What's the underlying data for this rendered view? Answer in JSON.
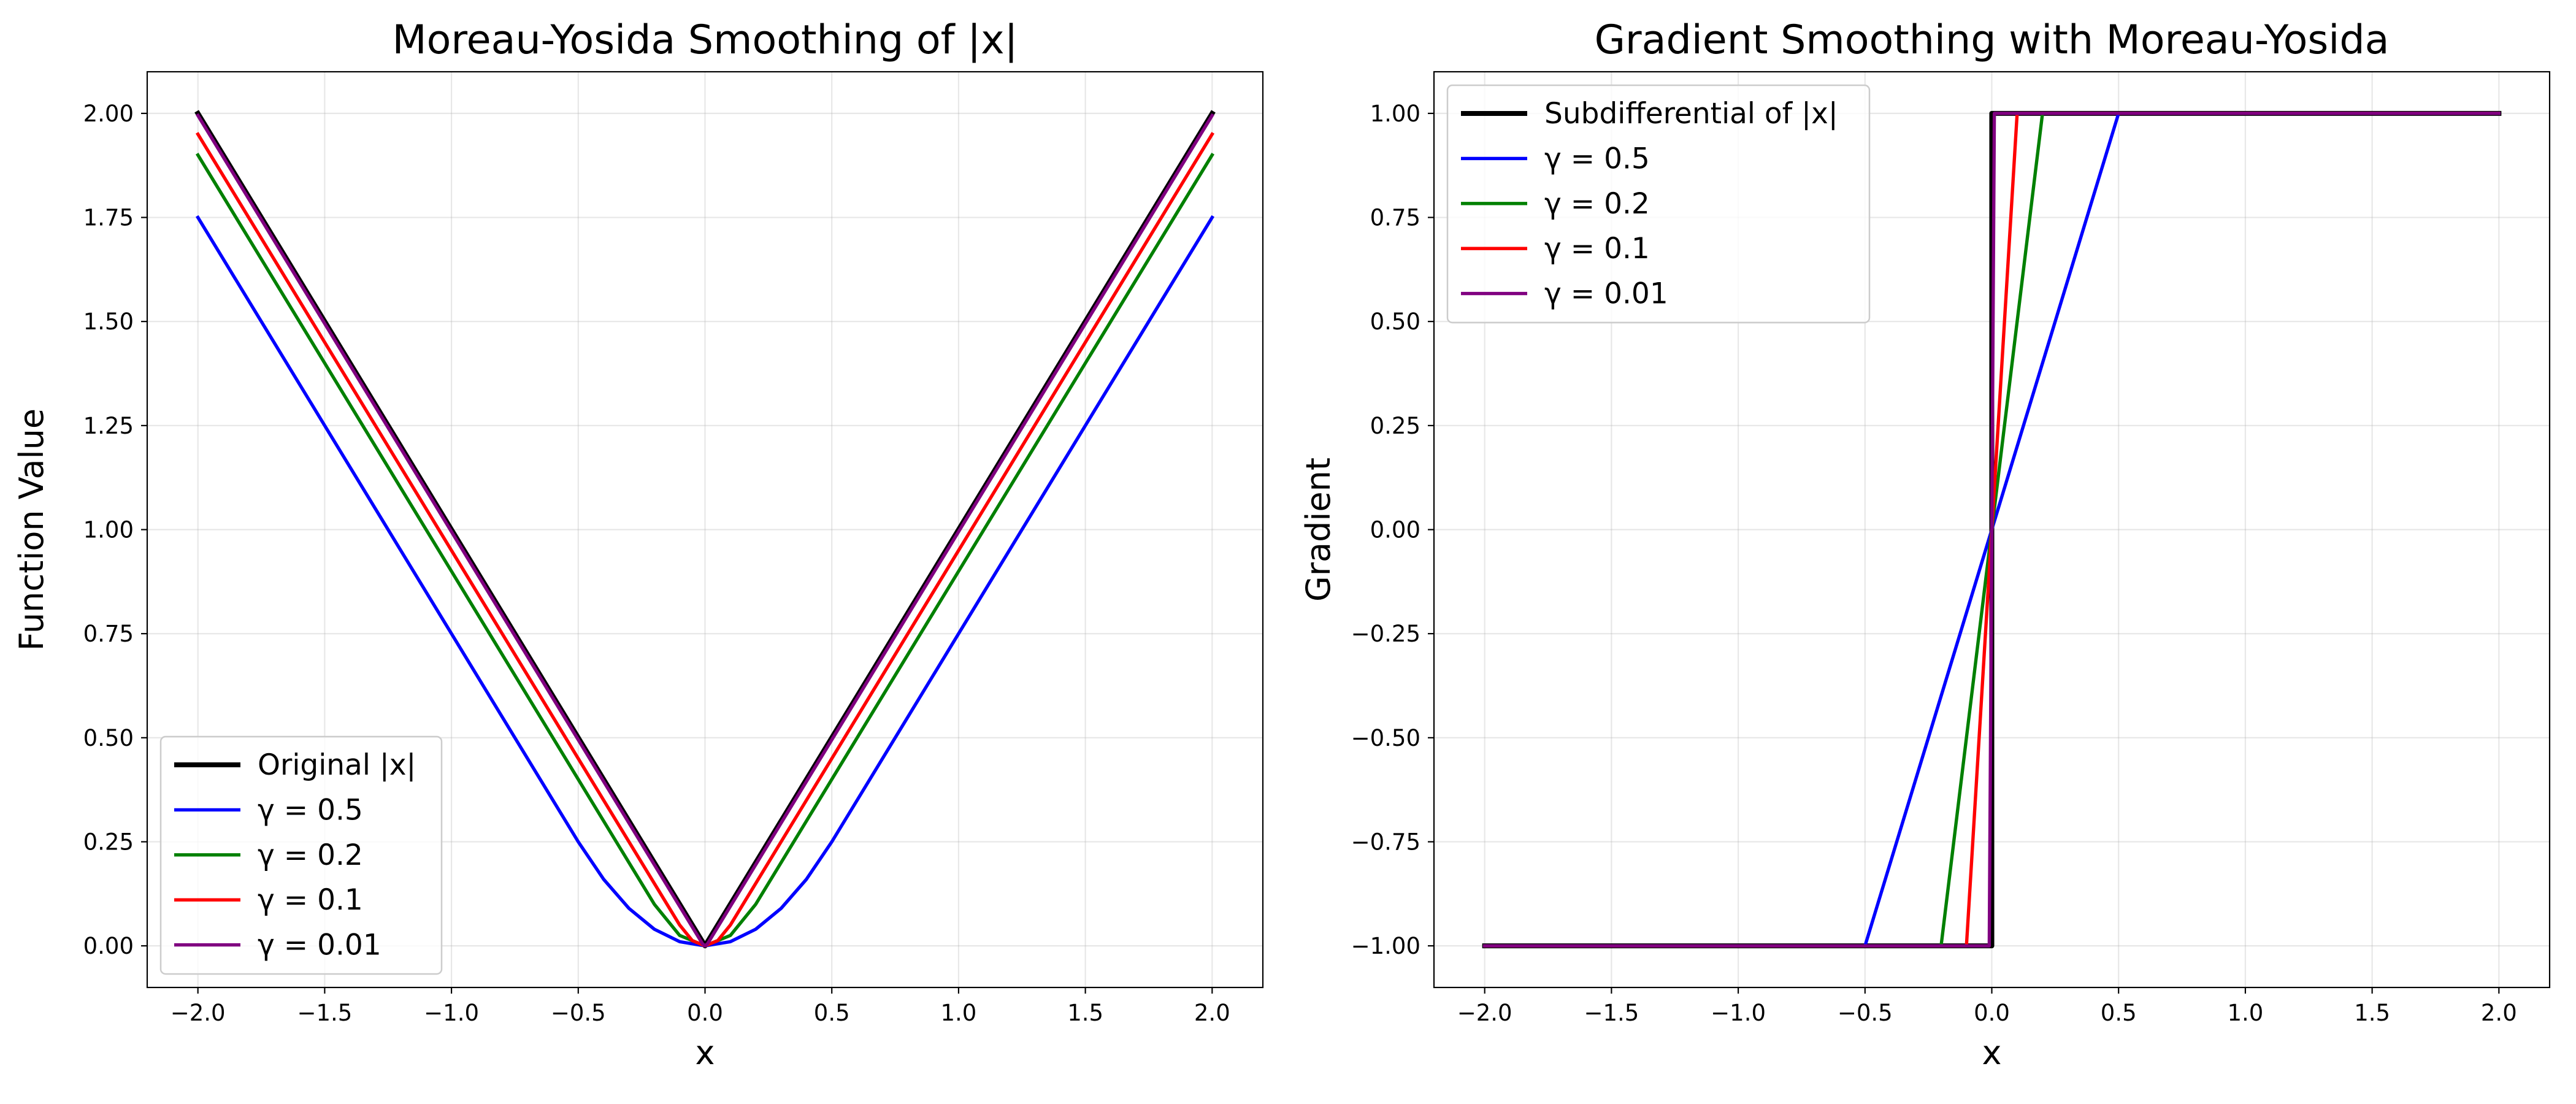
{
  "chart_data": [
    {
      "type": "line",
      "title": "Moreau-Yosida Smoothing of |x|",
      "xlabel": "x",
      "ylabel": "Function Value",
      "xlim": [
        -2.2,
        2.2
      ],
      "ylim": [
        -0.1,
        2.1
      ],
      "xticks": [
        -2.0,
        -1.5,
        -1.0,
        -0.5,
        0.0,
        0.5,
        1.0,
        1.5,
        2.0
      ],
      "yticks": [
        0.0,
        0.25,
        0.5,
        0.75,
        1.0,
        1.25,
        1.5,
        1.75,
        2.0
      ],
      "xtick_labels": [
        "−2.0",
        "−1.5",
        "−1.0",
        "−0.5",
        "0.0",
        "0.5",
        "1.0",
        "1.5",
        "2.0"
      ],
      "ytick_labels": [
        "0.00",
        "0.25",
        "0.50",
        "0.75",
        "1.00",
        "1.25",
        "1.50",
        "1.75",
        "2.00"
      ],
      "grid": true,
      "legend_position": "lower-left",
      "series": [
        {
          "name": "Original |x|",
          "color": "#000000",
          "width": 3,
          "x": [
            -2.0,
            0.0,
            2.0
          ],
          "y": [
            2.0,
            0.0,
            2.0
          ]
        },
        {
          "name": "γ = 0.5",
          "color": "#0000ff",
          "width": 2,
          "x": [
            -2.0,
            -1.5,
            -1.0,
            -0.5,
            -0.4,
            -0.3,
            -0.2,
            -0.1,
            0.0,
            0.1,
            0.2,
            0.3,
            0.4,
            0.5,
            1.0,
            1.5,
            2.0
          ],
          "y": [
            1.75,
            1.25,
            0.75,
            0.25,
            0.16,
            0.09,
            0.04,
            0.01,
            0.0,
            0.01,
            0.04,
            0.09,
            0.16,
            0.25,
            0.75,
            1.25,
            1.75
          ]
        },
        {
          "name": "γ = 0.2",
          "color": "#008000",
          "width": 2,
          "x": [
            -2.0,
            -1.0,
            -0.2,
            -0.1,
            0.0,
            0.1,
            0.2,
            1.0,
            2.0
          ],
          "y": [
            1.9,
            0.9,
            0.1,
            0.025,
            0.0,
            0.025,
            0.1,
            0.9,
            1.9
          ]
        },
        {
          "name": "γ = 0.1",
          "color": "#ff0000",
          "width": 2,
          "x": [
            -2.0,
            -1.0,
            -0.1,
            -0.05,
            0.0,
            0.05,
            0.1,
            1.0,
            2.0
          ],
          "y": [
            1.95,
            0.95,
            0.05,
            0.0125,
            0.0,
            0.0125,
            0.05,
            0.95,
            1.95
          ]
        },
        {
          "name": "γ = 0.01",
          "color": "#800080",
          "width": 2,
          "x": [
            -2.0,
            -1.0,
            -0.01,
            0.0,
            0.01,
            1.0,
            2.0
          ],
          "y": [
            1.995,
            0.995,
            0.005,
            0.0,
            0.005,
            0.995,
            1.995
          ]
        }
      ]
    },
    {
      "type": "line",
      "title": "Gradient Smoothing with Moreau-Yosida",
      "xlabel": "x",
      "ylabel": "Gradient",
      "xlim": [
        -2.2,
        2.2
      ],
      "ylim": [
        -1.1,
        1.1
      ],
      "xticks": [
        -2.0,
        -1.5,
        -1.0,
        -0.5,
        0.0,
        0.5,
        1.0,
        1.5,
        2.0
      ],
      "yticks": [
        -1.0,
        -0.75,
        -0.5,
        -0.25,
        0.0,
        0.25,
        0.5,
        0.75,
        1.0
      ],
      "xtick_labels": [
        "−2.0",
        "−1.5",
        "−1.0",
        "−0.5",
        "0.0",
        "0.5",
        "1.0",
        "1.5",
        "2.0"
      ],
      "ytick_labels": [
        "−1.00",
        "−0.75",
        "−0.50",
        "−0.25",
        "0.00",
        "0.25",
        "0.50",
        "0.75",
        "1.00"
      ],
      "grid": true,
      "legend_position": "upper-left",
      "series": [
        {
          "name": "Subdifferential of |x|",
          "color": "#000000",
          "width": 3,
          "x": [
            -2.0,
            0.0,
            0.0,
            2.0
          ],
          "y": [
            -1.0,
            -1.0,
            1.0,
            1.0
          ]
        },
        {
          "name": "γ = 0.5",
          "color": "#0000ff",
          "width": 2,
          "x": [
            -2.0,
            -0.5,
            0.5,
            2.0
          ],
          "y": [
            -1.0,
            -1.0,
            1.0,
            1.0
          ]
        },
        {
          "name": "γ = 0.2",
          "color": "#008000",
          "width": 2,
          "x": [
            -2.0,
            -0.2,
            0.2,
            2.0
          ],
          "y": [
            -1.0,
            -1.0,
            1.0,
            1.0
          ]
        },
        {
          "name": "γ = 0.1",
          "color": "#ff0000",
          "width": 2,
          "x": [
            -2.0,
            -0.1,
            0.1,
            2.0
          ],
          "y": [
            -1.0,
            -1.0,
            1.0,
            1.0
          ]
        },
        {
          "name": "γ = 0.01",
          "color": "#800080",
          "width": 2,
          "x": [
            -2.0,
            -0.01,
            0.01,
            2.0
          ],
          "y": [
            -1.0,
            -1.0,
            1.0,
            1.0
          ]
        }
      ]
    }
  ]
}
